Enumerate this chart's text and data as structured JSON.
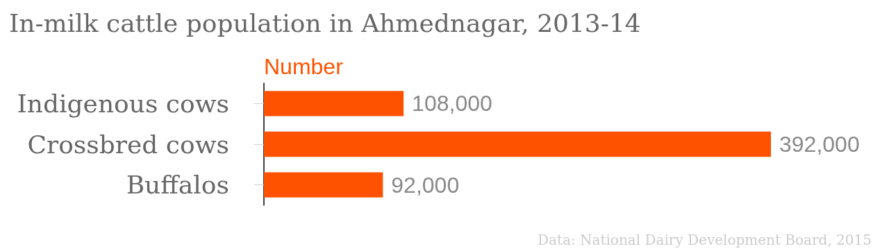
{
  "chart_data": {
    "type": "bar",
    "orientation": "horizontal",
    "title": "In-milk cattle population in Ahmednagar, 2013-14",
    "xlabel": "Number",
    "categories": [
      "Indigenous cows",
      "Crossbred cows",
      "Buffalos"
    ],
    "values": [
      108000,
      392000,
      92000
    ],
    "value_labels": [
      "108,000",
      "392,000",
      "92,000"
    ],
    "color": "#ff5200",
    "grid": false,
    "annotations": [
      "Data: National Dairy Development Board, 2015"
    ]
  }
}
